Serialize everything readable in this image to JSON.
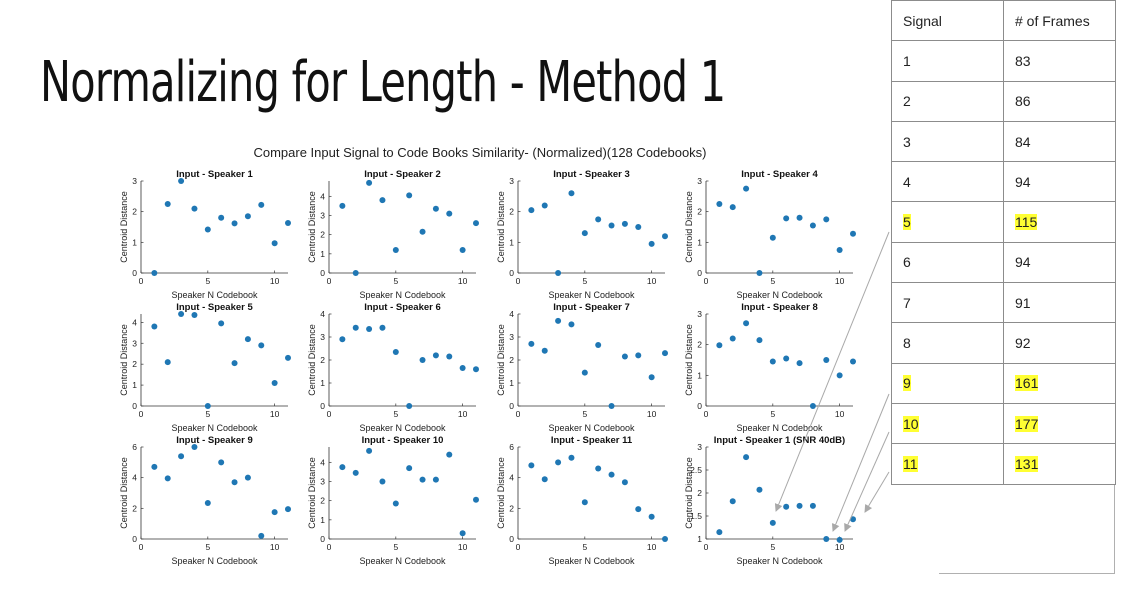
{
  "slide": {
    "title": "Normalizing for Length - Method 1"
  },
  "figure": {
    "title": "Compare Input Signal to Code Books Similarity- (Normalized)(128 Codebooks)"
  },
  "table": {
    "headers": [
      "Signal",
      "# of Frames"
    ],
    "rows": [
      {
        "signal": "1",
        "frames": "83",
        "highlight": false
      },
      {
        "signal": "2",
        "frames": "86",
        "highlight": false
      },
      {
        "signal": "3",
        "frames": "84",
        "highlight": false
      },
      {
        "signal": "4",
        "frames": "94",
        "highlight": false
      },
      {
        "signal": "5",
        "frames": "115",
        "highlight": true
      },
      {
        "signal": "6",
        "frames": "94",
        "highlight": false
      },
      {
        "signal": "7",
        "frames": "91",
        "highlight": false
      },
      {
        "signal": "8",
        "frames": "92",
        "highlight": false
      },
      {
        "signal": "9",
        "frames": "161",
        "highlight": true
      },
      {
        "signal": "10",
        "frames": "177",
        "highlight": true
      },
      {
        "signal": "11",
        "frames": "131",
        "highlight": true
      }
    ],
    "highlight_color": "#ffff33"
  },
  "chart_data": [
    {
      "type": "scatter",
      "title": "Input - Speaker 1",
      "xlabel": "Speaker N Codebook",
      "ylabel": "Centroid Distance",
      "x": [
        1,
        2,
        3,
        4,
        5,
        6,
        7,
        8,
        9,
        10,
        11
      ],
      "y": [
        0,
        2.25,
        3.0,
        2.1,
        1.42,
        1.8,
        1.62,
        1.85,
        2.22,
        0.97,
        1.63
      ],
      "xlim": [
        0,
        11
      ],
      "ylim": [
        0,
        3
      ],
      "xticks": [
        0,
        5,
        10
      ],
      "yticks": [
        0,
        1,
        2,
        3
      ]
    },
    {
      "type": "scatter",
      "title": "Input - Speaker 2",
      "xlabel": "Speaker N Codebook",
      "ylabel": "Centroid Distance",
      "x": [
        1,
        2,
        3,
        4,
        5,
        6,
        7,
        8,
        9,
        10,
        11
      ],
      "y": [
        3.5,
        0,
        4.7,
        3.8,
        1.2,
        4.05,
        2.15,
        3.35,
        3.1,
        1.2,
        2.6
      ],
      "xlim": [
        0,
        11
      ],
      "ylim": [
        0,
        4.8
      ],
      "xticks": [
        0,
        5,
        10
      ],
      "yticks": [
        0,
        1,
        2,
        3,
        4
      ]
    },
    {
      "type": "scatter",
      "title": "Input - Speaker 3",
      "xlabel": "Speaker N Codebook",
      "ylabel": "Centroid Distance",
      "x": [
        1,
        2,
        3,
        4,
        5,
        6,
        7,
        8,
        9,
        10,
        11
      ],
      "y": [
        2.05,
        2.2,
        0,
        2.6,
        1.3,
        1.75,
        1.55,
        1.6,
        1.5,
        0.95,
        1.2
      ],
      "xlim": [
        0,
        11
      ],
      "ylim": [
        0,
        3
      ],
      "xticks": [
        0,
        5,
        10
      ],
      "yticks": [
        0,
        1,
        2,
        3
      ]
    },
    {
      "type": "scatter",
      "title": "Input - Speaker 4",
      "xlabel": "Speaker N Codebook",
      "ylabel": "Centroid Distance",
      "x": [
        1,
        2,
        3,
        4,
        5,
        6,
        7,
        8,
        9,
        10,
        11
      ],
      "y": [
        2.25,
        2.15,
        2.75,
        0,
        1.15,
        1.78,
        1.8,
        1.55,
        1.75,
        0.75,
        1.28
      ],
      "xlim": [
        0,
        11
      ],
      "ylim": [
        0,
        3
      ],
      "xticks": [
        0,
        5,
        10
      ],
      "yticks": [
        0,
        1,
        2,
        3
      ]
    },
    {
      "type": "scatter",
      "title": "Input - Speaker 5",
      "xlabel": "Speaker N Codebook",
      "ylabel": "Centroid Distance",
      "x": [
        1,
        2,
        3,
        4,
        5,
        6,
        7,
        8,
        9,
        10,
        11
      ],
      "y": [
        3.8,
        2.1,
        4.4,
        4.35,
        0,
        3.95,
        2.05,
        3.2,
        2.9,
        1.1,
        2.3
      ],
      "xlim": [
        0,
        11
      ],
      "ylim": [
        0,
        4.4
      ],
      "xticks": [
        0,
        5,
        10
      ],
      "yticks": [
        0,
        1,
        2,
        3,
        4
      ]
    },
    {
      "type": "scatter",
      "title": "Input - Speaker 6",
      "xlabel": "Speaker N Codebook",
      "ylabel": "Centroid Distance",
      "x": [
        1,
        2,
        3,
        4,
        5,
        6,
        7,
        8,
        9,
        10,
        11
      ],
      "y": [
        2.9,
        3.4,
        3.35,
        3.4,
        2.35,
        0,
        2.0,
        2.2,
        2.15,
        1.65,
        1.6
      ],
      "xlim": [
        0,
        11
      ],
      "ylim": [
        0,
        4
      ],
      "xticks": [
        0,
        5,
        10
      ],
      "yticks": [
        0,
        1,
        2,
        3,
        4
      ]
    },
    {
      "type": "scatter",
      "title": "Input - Speaker 7",
      "xlabel": "Speaker N Codebook",
      "ylabel": "Centroid Distance",
      "x": [
        1,
        2,
        3,
        4,
        5,
        6,
        7,
        8,
        9,
        10,
        11
      ],
      "y": [
        2.7,
        2.4,
        3.7,
        3.55,
        1.45,
        2.65,
        0,
        2.15,
        2.2,
        1.25,
        2.3
      ],
      "xlim": [
        0,
        11
      ],
      "ylim": [
        0,
        4
      ],
      "xticks": [
        0,
        5,
        10
      ],
      "yticks": [
        0,
        1,
        2,
        3,
        4
      ]
    },
    {
      "type": "scatter",
      "title": "Input - Speaker 8",
      "xlabel": "Speaker N Codebook",
      "ylabel": "Centroid Distance",
      "x": [
        1,
        2,
        3,
        4,
        5,
        6,
        7,
        8,
        9,
        10,
        11
      ],
      "y": [
        1.98,
        2.2,
        2.7,
        2.15,
        1.45,
        1.55,
        1.4,
        0,
        1.5,
        1.0,
        1.45
      ],
      "xlim": [
        0,
        11
      ],
      "ylim": [
        0,
        3
      ],
      "xticks": [
        0,
        5,
        10
      ],
      "yticks": [
        0,
        1,
        2,
        3
      ]
    },
    {
      "type": "scatter",
      "title": "Input - Speaker 9",
      "xlabel": "Speaker N Codebook",
      "ylabel": "Centroid Distance",
      "x": [
        1,
        2,
        3,
        4,
        5,
        6,
        7,
        8,
        9,
        10,
        11
      ],
      "y": [
        4.7,
        3.95,
        5.4,
        6.0,
        2.35,
        5.0,
        3.7,
        4.0,
        0.2,
        1.75,
        1.95
      ],
      "xlim": [
        0,
        11
      ],
      "ylim": [
        0,
        6
      ],
      "xticks": [
        0,
        5,
        10
      ],
      "yticks": [
        0,
        2,
        4,
        6
      ]
    },
    {
      "type": "scatter",
      "title": "Input - Speaker 10",
      "xlabel": "Speaker N Codebook",
      "ylabel": "Centroid Distance",
      "x": [
        1,
        2,
        3,
        4,
        5,
        6,
        7,
        8,
        9,
        10,
        11
      ],
      "y": [
        3.75,
        3.45,
        4.6,
        3.0,
        1.85,
        3.7,
        3.1,
        3.1,
        4.4,
        0.3,
        2.05
      ],
      "xlim": [
        0,
        11
      ],
      "ylim": [
        0,
        4.8
      ],
      "xticks": [
        0,
        5,
        10
      ],
      "yticks": [
        0,
        1,
        2,
        3,
        4
      ]
    },
    {
      "type": "scatter",
      "title": "Input - Speaker 11",
      "xlabel": "Speaker N Codebook",
      "ylabel": "Centroid Distance",
      "x": [
        1,
        2,
        3,
        4,
        5,
        6,
        7,
        8,
        9,
        10,
        11
      ],
      "y": [
        4.8,
        3.9,
        5.0,
        5.3,
        2.4,
        4.6,
        4.2,
        3.7,
        1.95,
        1.45,
        0
      ],
      "xlim": [
        0,
        11
      ],
      "ylim": [
        0,
        6
      ],
      "xticks": [
        0,
        5,
        10
      ],
      "yticks": [
        0,
        2,
        4,
        6
      ]
    },
    {
      "type": "scatter",
      "title": "Input - Speaker 1 (SNR 40dB)",
      "xlabel": "Speaker N Codebook",
      "ylabel": "Centroid Distance",
      "x": [
        1,
        2,
        3,
        4,
        5,
        6,
        7,
        8,
        9,
        10,
        11
      ],
      "y": [
        1.15,
        1.82,
        2.78,
        2.07,
        1.35,
        1.7,
        1.72,
        1.72,
        1.0,
        0.98,
        1.43
      ],
      "xlim": [
        0,
        11
      ],
      "ylim": [
        1,
        3
      ],
      "xticks": [
        0,
        5,
        10
      ],
      "yticks": [
        1,
        1.5,
        2,
        2.5,
        3
      ]
    }
  ],
  "colors": {
    "marker": "#1f77b4",
    "axis": "#333333",
    "arrow": "#a9a9a9"
  }
}
